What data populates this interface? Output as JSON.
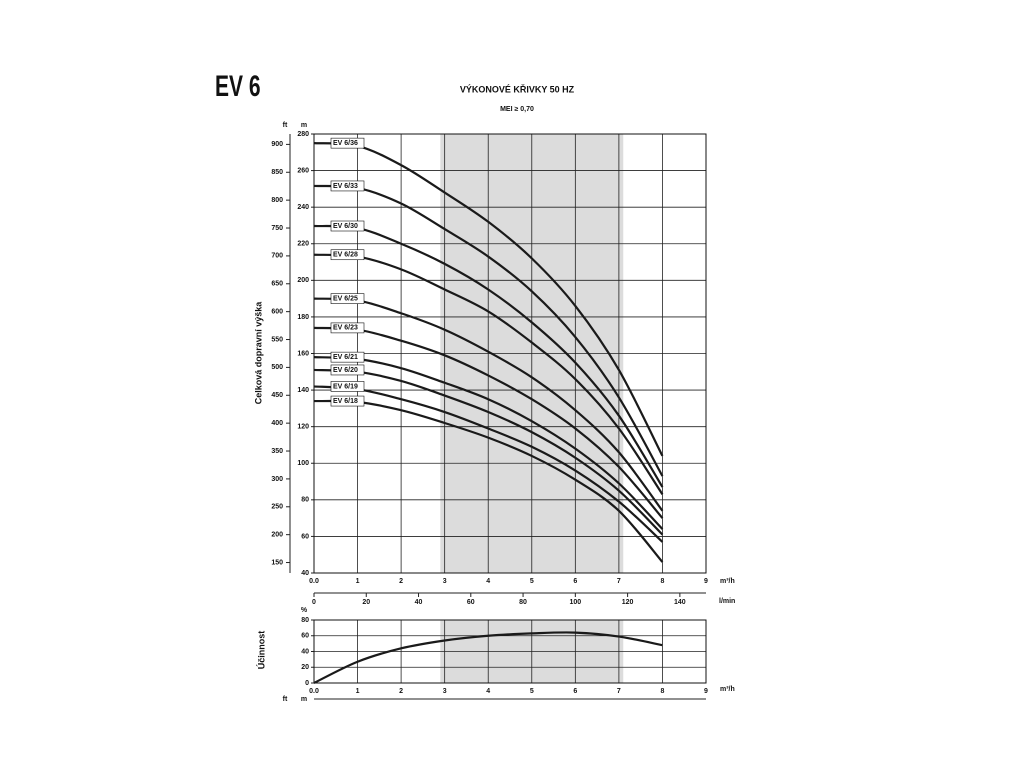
{
  "header": {
    "model": "EV 6"
  },
  "chart_data": [
    {
      "type": "line",
      "title": "VÝKONOVÉ KŘIVKY 50 HZ",
      "subtitle": "MEI ≥ 0,70",
      "y_label": "Celková dopravní výška",
      "x_unit": "m³/h",
      "y_unit": "m",
      "y_ft_unit": "ft",
      "x2_unit": "l/min",
      "x": [
        0,
        1,
        2,
        3,
        4,
        5,
        6,
        7,
        8
      ],
      "series": [
        {
          "name": "EV 6/36",
          "values": [
            275,
            273.5,
            263,
            248,
            232,
            212,
            186,
            151,
            104
          ]
        },
        {
          "name": "EV 6/33",
          "values": [
            251.6,
            250.5,
            242,
            228,
            213,
            194,
            169,
            136,
            93
          ]
        },
        {
          "name": "EV 6/30",
          "values": [
            229.7,
            228.6,
            220,
            209,
            195,
            177,
            155,
            126,
            87
          ]
        },
        {
          "name": "EV 6/28",
          "values": [
            214,
            213,
            206,
            195,
            183,
            166,
            146,
            119,
            83
          ]
        },
        {
          "name": "EV 6/25",
          "values": [
            190,
            189,
            182,
            173,
            161,
            147,
            129,
            106,
            74
          ]
        },
        {
          "name": "EV 6/23",
          "values": [
            174,
            173,
            167,
            159,
            148,
            135,
            119,
            98,
            70
          ]
        },
        {
          "name": "EV 6/21",
          "values": [
            158,
            157,
            152,
            144,
            135,
            123,
            108,
            89,
            64
          ]
        },
        {
          "name": "EV 6/20",
          "values": [
            151,
            150,
            145,
            137,
            128,
            117,
            103,
            85,
            61
          ]
        },
        {
          "name": "EV 6/19",
          "values": [
            142,
            140.5,
            135,
            128,
            119,
            109,
            96,
            79,
            57
          ]
        },
        {
          "name": "EV 6/18",
          "values": [
            134,
            133.5,
            129,
            122,
            114,
            104,
            91,
            74,
            46
          ]
        }
      ],
      "color": "#1a1a1a",
      "xlim": [
        0,
        9
      ],
      "xticks": [
        {
          "value": 0,
          "label": "0.0"
        },
        1,
        2,
        3,
        4,
        5,
        6,
        7,
        8,
        9
      ],
      "ylim": [
        40,
        280
      ],
      "yticks": [
        40,
        60,
        80,
        100,
        120,
        140,
        160,
        180,
        200,
        220,
        240,
        260,
        280
      ],
      "y_ft_lim": [
        131.23,
        918.64
      ],
      "y_ft_ticks": [
        150,
        200,
        250,
        300,
        350,
        400,
        450,
        500,
        550,
        600,
        650,
        700,
        750,
        800,
        850,
        900
      ],
      "x2lim": [
        0,
        150
      ],
      "x2ticks": [
        0,
        20,
        40,
        60,
        80,
        100,
        120,
        140
      ],
      "shaded_x": [
        2.9,
        7.1
      ],
      "shade_color": "#dcdcdc",
      "grid": true
    },
    {
      "type": "line",
      "y_label": "Účinnost",
      "y_unit": "%",
      "x_unit": "m³/h",
      "bottom_units": [
        "ft",
        "m"
      ],
      "x": [
        0,
        1,
        2,
        3,
        4,
        5,
        6,
        7,
        8
      ],
      "values": [
        0,
        27,
        44,
        54,
        60,
        63,
        64,
        59,
        48
      ],
      "color": "#1a1a1a",
      "xlim": [
        0,
        9
      ],
      "xticks": [
        {
          "value": 0,
          "label": "0.0"
        },
        1,
        2,
        3,
        4,
        5,
        6,
        7,
        8,
        9
      ],
      "ylim": [
        0,
        80
      ],
      "yticks": [
        0,
        20,
        40,
        60,
        80
      ],
      "shaded_x": [
        2.9,
        7.1
      ],
      "shade_color": "#dcdcdc",
      "grid": true
    }
  ]
}
